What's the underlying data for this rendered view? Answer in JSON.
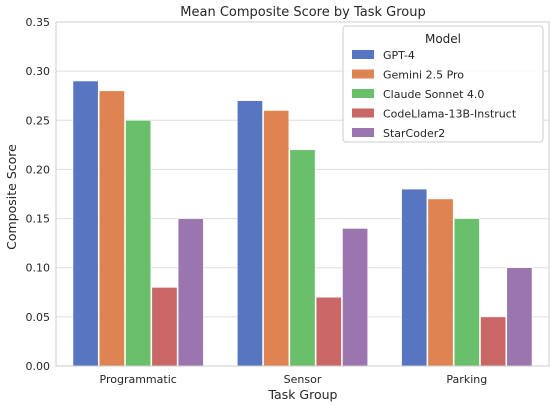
{
  "chart_data": {
    "type": "bar",
    "title": "Mean Composite Score by Task Group",
    "xlabel": "Task Group",
    "ylabel": "Composite Score",
    "categories": [
      "Programmatic",
      "Sensor",
      "Parking"
    ],
    "ylim": [
      0,
      0.35
    ],
    "yticks": [
      "0.00",
      "0.05",
      "0.10",
      "0.15",
      "0.20",
      "0.25",
      "0.30",
      "0.35"
    ],
    "grid": true,
    "legend": {
      "title": "Model",
      "placement": "top-right"
    },
    "series": [
      {
        "name": "GPT-4",
        "color": "#5875c1",
        "values": [
          0.29,
          0.27,
          0.18
        ]
      },
      {
        "name": "Gemini 2.5 Pro",
        "color": "#dd8452",
        "values": [
          0.28,
          0.26,
          0.17
        ]
      },
      {
        "name": "Claude Sonnet 4.0",
        "color": "#6abf6a",
        "values": [
          0.25,
          0.22,
          0.15
        ]
      },
      {
        "name": "CodeLlama-13B-Instruct",
        "color": "#c96666",
        "values": [
          0.08,
          0.07,
          0.05
        ]
      },
      {
        "name": "StarCoder2",
        "color": "#9a75ae",
        "values": [
          0.15,
          0.14,
          0.1
        ]
      }
    ]
  }
}
